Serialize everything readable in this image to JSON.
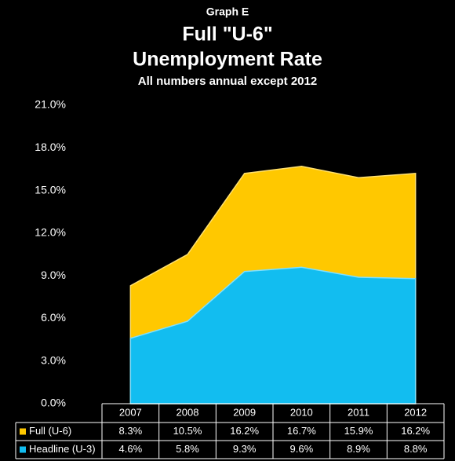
{
  "chart_data": {
    "type": "area",
    "title": "Graph E",
    "subtitle": "Full \"U-6\"",
    "subtitle2": "Unemployment Rate",
    "note": "All numbers annual except 2012",
    "categories": [
      "2007",
      "2008",
      "2009",
      "2010",
      "2011",
      "2012"
    ],
    "series": [
      {
        "name": "Full (U-6)",
        "color": "#ffc800",
        "values": [
          8.3,
          10.5,
          16.2,
          16.7,
          15.9,
          16.2
        ],
        "value_labels": [
          "8.3%",
          "10.5%",
          "16.2%",
          "16.7%",
          "15.9%",
          "16.2%"
        ]
      },
      {
        "name": "Headline (U-3)",
        "color": "#12bdf0",
        "values": [
          4.6,
          5.8,
          9.3,
          9.6,
          8.9,
          8.8
        ],
        "value_labels": [
          "4.6%",
          "5.8%",
          "9.3%",
          "9.6%",
          "8.9%",
          "8.8%"
        ]
      }
    ],
    "ylim": [
      0,
      21
    ],
    "yticks": [
      {
        "value": 0,
        "label": "0.0%"
      },
      {
        "value": 3,
        "label": "3.0%"
      },
      {
        "value": 6,
        "label": "6.0%"
      },
      {
        "value": 9,
        "label": "9.0%"
      },
      {
        "value": 12,
        "label": "12.0%"
      },
      {
        "value": 15,
        "label": "15.0%"
      },
      {
        "value": 18,
        "label": "18.0%"
      },
      {
        "value": 21,
        "label": "21.0%"
      }
    ]
  }
}
